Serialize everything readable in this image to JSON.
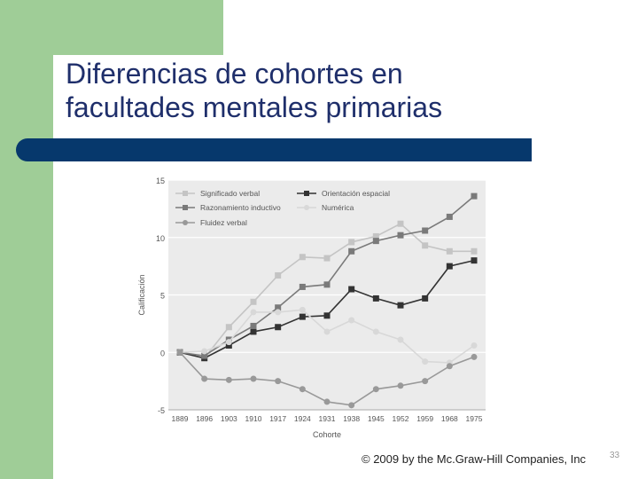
{
  "slide": {
    "title_line1": "Diferencias de cohortes en",
    "title_line2": "facultades mentales primarias",
    "footer": "© 2009 by the Mc.Graw-Hill Companies, Inc",
    "page_number": "33",
    "colors": {
      "green": "#9fcd97",
      "navy_bar": "#06386c",
      "title_text": "#1f2f6b"
    }
  },
  "chart_data": {
    "type": "line",
    "title": "",
    "xlabel": "Cohorte",
    "ylabel": "Calificación",
    "categories": [
      "1889",
      "1896",
      "1903",
      "1910",
      "1917",
      "1924",
      "1931",
      "1938",
      "1945",
      "1952",
      "1959",
      "1968",
      "1975"
    ],
    "ylim": [
      -5,
      15
    ],
    "yticks": [
      -5,
      0,
      5,
      10,
      15
    ],
    "grid": "horizontal",
    "legend_position": "top-left",
    "series": [
      {
        "name": "Significado verbal",
        "marker": "square",
        "color": "#c4c4c4",
        "values": [
          0,
          -0.5,
          2.2,
          4.4,
          6.7,
          8.3,
          8.2,
          9.6,
          10.1,
          11.2,
          9.3,
          8.8,
          8.8
        ]
      },
      {
        "name": "Orientación espacial",
        "marker": "square",
        "color": "#333333",
        "values": [
          0,
          -0.5,
          0.6,
          1.8,
          2.2,
          3.1,
          3.2,
          5.5,
          4.7,
          4.1,
          4.7,
          7.5,
          8.0
        ]
      },
      {
        "name": "Razonamiento inductivo",
        "marker": "square",
        "color": "#7a7a7a",
        "values": [
          0,
          -0.3,
          1.1,
          2.3,
          3.9,
          5.7,
          5.9,
          8.8,
          9.7,
          10.2,
          10.6,
          11.8,
          13.6
        ]
      },
      {
        "name": "Numérica",
        "marker": "circle",
        "color": "#d8d8d8",
        "values": [
          0,
          0.1,
          0.9,
          3.5,
          3.5,
          3.7,
          1.8,
          2.8,
          1.8,
          1.1,
          -0.8,
          -0.9,
          0.6
        ]
      },
      {
        "name": "Fluidez verbal",
        "marker": "circle",
        "color": "#999999",
        "values": [
          0,
          -2.3,
          -2.4,
          -2.3,
          -2.5,
          -3.2,
          -4.3,
          -4.6,
          -3.2,
          -2.9,
          -2.5,
          -1.2,
          -0.4
        ]
      }
    ]
  }
}
